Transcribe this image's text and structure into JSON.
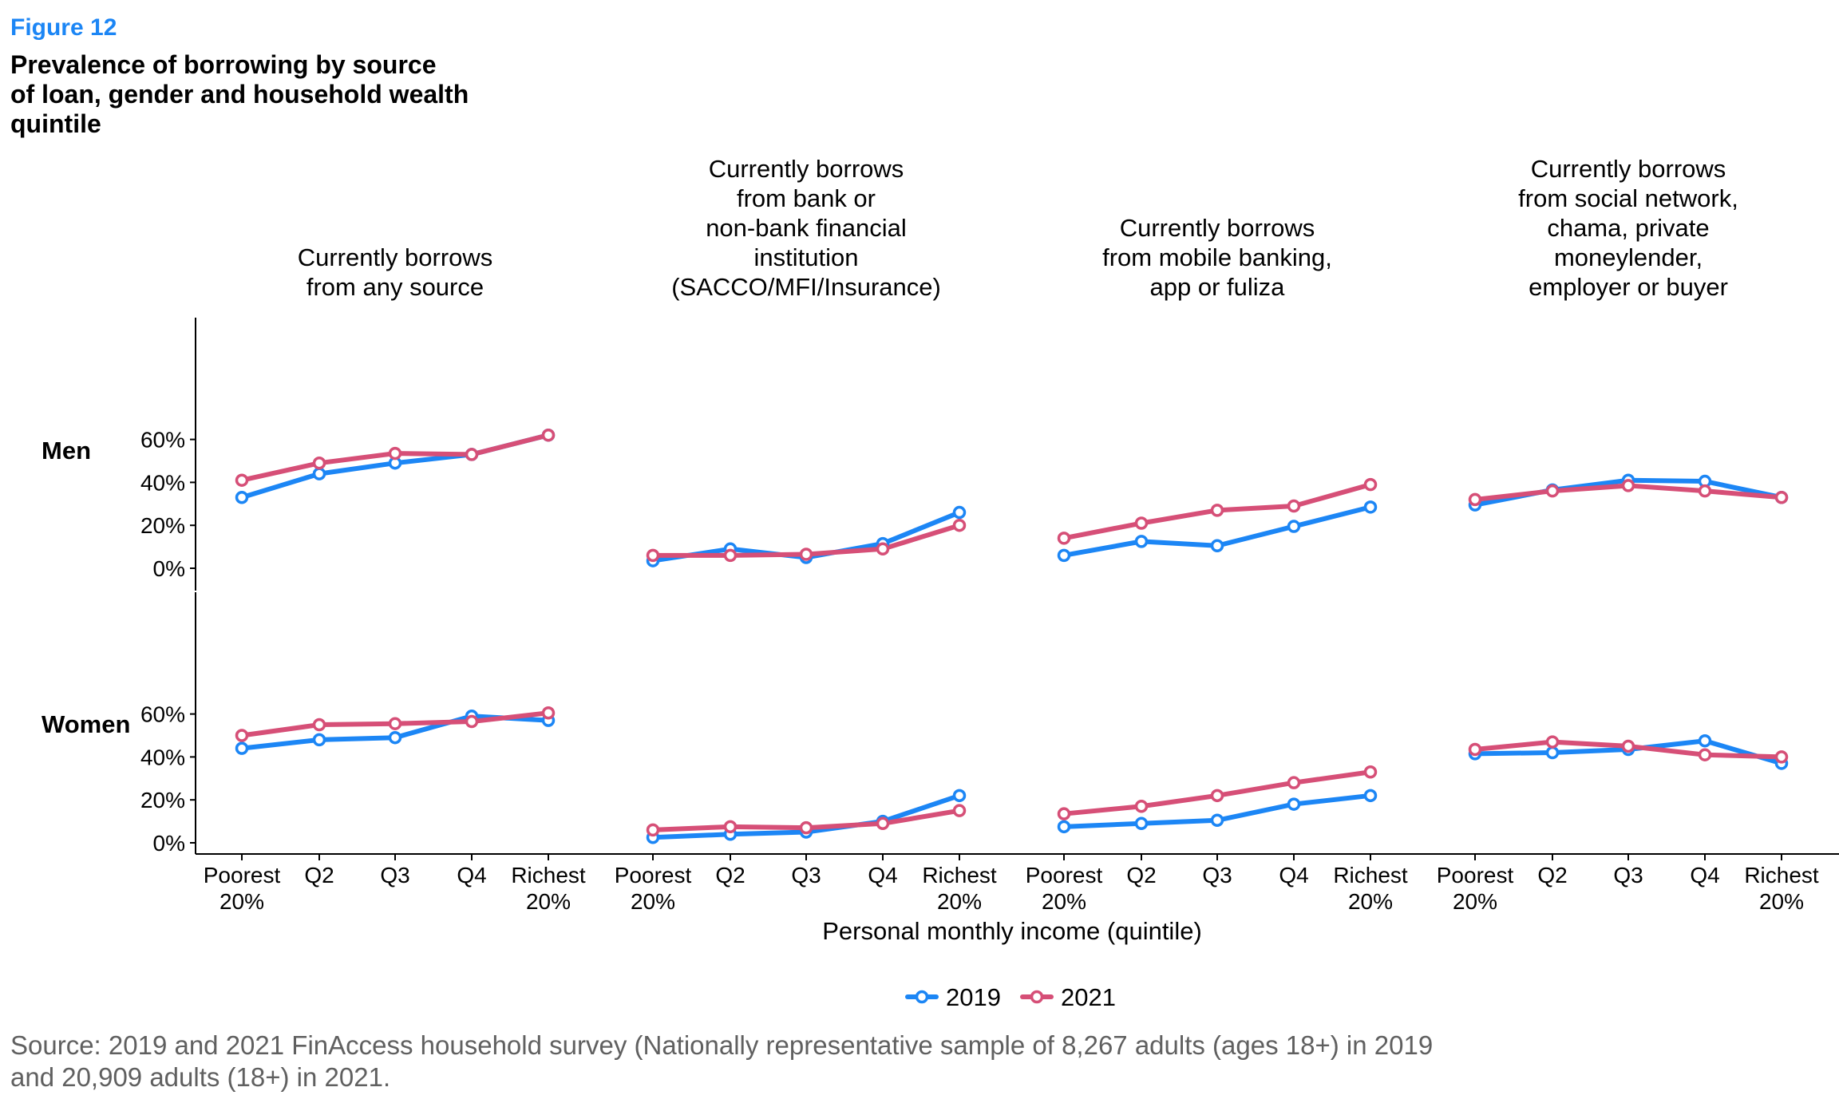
{
  "figure": {
    "label": "Figure 12",
    "title": "Prevalence of borrowing by source\nof loan, gender and household wealth\nquintile",
    "source": "Source: 2019 and 2021 FinAccess household survey (Nationally representative sample of 8,267 adults (ages 18+) in 2019\nand 20,909 adults (18+) in 2021."
  },
  "chart_data": {
    "type": "line",
    "xlabel": "Personal monthly income (quintile)",
    "categories": [
      [
        "Poorest",
        "20%"
      ],
      [
        "Q2"
      ],
      [
        "Q3"
      ],
      [
        "Q4"
      ],
      [
        "Richest",
        "20%"
      ]
    ],
    "ylim": [
      0,
      75
    ],
    "yticks": [
      0,
      20,
      40,
      60
    ],
    "ytick_labels": [
      "0%",
      "20%",
      "40%",
      "60%"
    ],
    "legend_position": "bottom",
    "colors": {
      "2019": "#1c86f5",
      "2021": "#d64f77"
    },
    "series_names": [
      "2019",
      "2021"
    ],
    "rows": [
      "Men",
      "Women"
    ],
    "panels": [
      {
        "title": [
          "Currently borrows",
          "from any source"
        ],
        "Men": {
          "2019": [
            33,
            44,
            49,
            53,
            62
          ],
          "2021": [
            41,
            49,
            53.5,
            53,
            62
          ]
        },
        "Women": {
          "2019": [
            44,
            48,
            49,
            59,
            57
          ],
          "2021": [
            50,
            55,
            55.5,
            56.5,
            60.5
          ]
        }
      },
      {
        "title": [
          "Currently borrows",
          "from bank or",
          "non-bank financial",
          "institution",
          "(SACCO/MFI/Insurance)"
        ],
        "Men": {
          "2019": [
            3.5,
            9,
            5,
            11.5,
            26
          ],
          "2021": [
            6,
            6,
            6.5,
            9,
            20
          ]
        },
        "Women": {
          "2019": [
            2.5,
            4,
            5,
            10,
            22
          ],
          "2021": [
            6,
            7.5,
            7,
            9,
            15
          ]
        }
      },
      {
        "title": [
          "Currently borrows",
          "from mobile banking,",
          "app or fuliza"
        ],
        "Men": {
          "2019": [
            6,
            12.5,
            10.5,
            19.5,
            28.5
          ],
          "2021": [
            14,
            21,
            27,
            29,
            39
          ]
        },
        "Women": {
          "2019": [
            7.5,
            9,
            10.5,
            18,
            22
          ],
          "2021": [
            13.5,
            17,
            22,
            28,
            33
          ]
        }
      },
      {
        "title": [
          "Currently borrows",
          "from social network,",
          "chama, private",
          "moneylender,",
          "employer or buyer"
        ],
        "Men": {
          "2019": [
            29.5,
            36.5,
            41,
            40.5,
            33
          ],
          "2021": [
            32,
            36,
            38.5,
            36,
            33
          ]
        },
        "Women": {
          "2019": [
            41.5,
            42,
            43.5,
            47.5,
            37
          ],
          "2021": [
            43.5,
            47,
            45,
            41,
            40
          ]
        }
      }
    ]
  }
}
